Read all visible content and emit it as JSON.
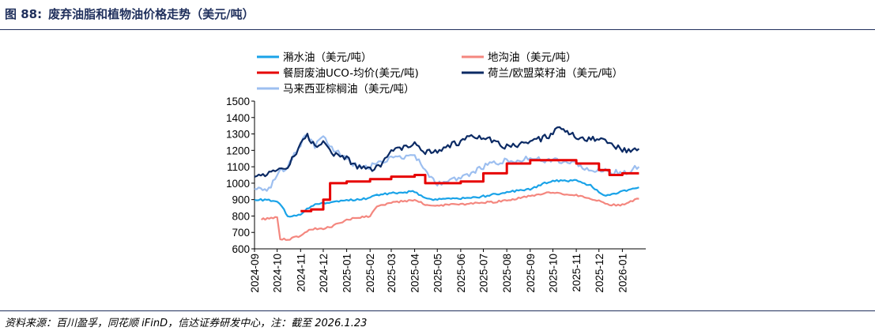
{
  "figure": {
    "number": "图 88:",
    "title": "废弃油脂和植物油价格走势（美元/吨）",
    "source": "资料来源：百川盈孚，同花顺 iFinD，信达证券研发中心，注：截至 2026.1.23"
  },
  "chart_data": {
    "type": "line",
    "title": "废弃油脂和植物油价格走势（美元/吨）",
    "xlabel": "",
    "ylabel": "",
    "ylim": [
      600,
      1500
    ],
    "yticks": [
      600,
      700,
      800,
      900,
      1000,
      1100,
      1200,
      1300,
      1400,
      1500
    ],
    "xlim": [
      "2024-09",
      "2026-01"
    ],
    "categories": [
      "2024-09",
      "2024-10",
      "2024-11",
      "2024-12",
      "2025-01",
      "2025-02",
      "2025-03",
      "2025-04",
      "2025-05",
      "2025-06",
      "2025-07",
      "2025-08",
      "2025-09",
      "2025-10",
      "2025-11",
      "2025-12",
      "2026-01"
    ],
    "grid": false,
    "legend_position": "top",
    "series": [
      {
        "name": "潲水油（美元/吨）",
        "color": "#1aa3e8",
        "x": [
          "2024-09",
          "2024-09-20",
          "2024-10",
          "2024-10-10",
          "2024-10-15",
          "2024-11",
          "2024-11-15",
          "2024-12",
          "2025-01",
          "2025-01-15",
          "2025-02",
          "2025-02-10",
          "2025-03",
          "2025-04",
          "2025-04-15",
          "2025-05",
          "2025-06",
          "2025-07",
          "2025-08",
          "2025-09",
          "2025-09-20",
          "2025-10",
          "2025-11",
          "2025-11-20",
          "2025-12",
          "2025-12-10",
          "2026-01",
          "2026-01-23"
        ],
        "values": [
          900,
          895,
          890,
          840,
          795,
          810,
          860,
          880,
          895,
          900,
          910,
          930,
          940,
          950,
          905,
          900,
          905,
          920,
          945,
          965,
          1000,
          1015,
          1015,
          985,
          950,
          925,
          950,
          975
        ]
      },
      {
        "name": "地沟油（美元/吨）",
        "color": "#f4877f",
        "x": [
          "2024-09-10",
          "2024-10",
          "2024-10-05",
          "2024-10-15",
          "2024-11",
          "2024-11-15",
          "2024-12",
          "2024-12-15",
          "2025-01",
          "2025-02",
          "2025-02-10",
          "2025-03",
          "2025-04",
          "2025-04-15",
          "2025-05",
          "2025-06",
          "2025-07",
          "2025-08",
          "2025-09",
          "2025-10",
          "2025-11",
          "2025-12",
          "2025-12-15",
          "2026-01",
          "2026-01-23"
        ],
        "values": [
          780,
          790,
          660,
          655,
          680,
          720,
          725,
          740,
          780,
          800,
          860,
          880,
          900,
          870,
          865,
          870,
          880,
          895,
          920,
          945,
          925,
          890,
          865,
          870,
          905
        ]
      },
      {
        "name": "餐厨废油UCO-均价(美元/吨)",
        "color": "#e60000",
        "x": [
          "2024-11",
          "2024-11-15",
          "2024-12",
          "2024-12-10",
          "2025-01",
          "2025-02",
          "2025-03",
          "2025-04",
          "2025-04-15",
          "2025-05",
          "2025-06",
          "2025-07",
          "2025-08",
          "2025-09",
          "2025-10",
          "2025-11",
          "2025-12",
          "2025-12-15",
          "2026-01",
          "2026-01-23"
        ],
        "values": [
          830,
          840,
          900,
          1000,
          1010,
          1025,
          1040,
          1050,
          1000,
          1000,
          1010,
          1060,
          1120,
          1140,
          1140,
          1120,
          1080,
          1050,
          1060,
          1060
        ]
      },
      {
        "name": "荷兰/欧盟菜籽油（美元/吨）",
        "color": "#0b2a64",
        "x": [
          "2024-09",
          "2024-09-15",
          "2024-10",
          "2024-10-15",
          "2024-11",
          "2024-11-10",
          "2024-11-20",
          "2024-12",
          "2024-12-15",
          "2025-01",
          "2025-01-15",
          "2025-02",
          "2025-02-15",
          "2025-03",
          "2025-03-15",
          "2025-04",
          "2025-04-15",
          "2025-05",
          "2025-05-15",
          "2025-06",
          "2025-06-15",
          "2025-07",
          "2025-07-15",
          "2025-08",
          "2025-08-15",
          "2025-09",
          "2025-09-15",
          "2025-10",
          "2025-10-10",
          "2025-10-20",
          "2025-11",
          "2025-11-15",
          "2025-12",
          "2025-12-15",
          "2026-01",
          "2026-01-23"
        ],
        "values": [
          1050,
          1040,
          1090,
          1100,
          1240,
          1290,
          1230,
          1250,
          1180,
          1150,
          1100,
          1080,
          1110,
          1200,
          1210,
          1240,
          1190,
          1200,
          1230,
          1250,
          1290,
          1270,
          1260,
          1220,
          1230,
          1260,
          1270,
          1300,
          1350,
          1310,
          1280,
          1270,
          1270,
          1250,
          1200,
          1210
        ]
      },
      {
        "name": "马来西亚棕榈油（美元/吨）",
        "color": "#9dbff0",
        "x": [
          "2024-09",
          "2024-09-20",
          "2024-10",
          "2024-10-15",
          "2024-11",
          "2024-11-10",
          "2024-11-20",
          "2024-12",
          "2024-12-15",
          "2025-01",
          "2025-01-15",
          "2025-02",
          "2025-02-15",
          "2025-03",
          "2025-03-15",
          "2025-04",
          "2025-04-15",
          "2025-05",
          "2025-05-15",
          "2025-06",
          "2025-06-15",
          "2025-07",
          "2025-07-15",
          "2025-08",
          "2025-08-15",
          "2025-09",
          "2025-09-15",
          "2025-10",
          "2025-10-15",
          "2025-11",
          "2025-11-15",
          "2025-12",
          "2025-12-15",
          "2026-01",
          "2026-01-23"
        ],
        "values": [
          980,
          960,
          1060,
          1100,
          1240,
          1300,
          1230,
          1280,
          1200,
          1150,
          1100,
          1100,
          1130,
          1150,
          1160,
          1170,
          1080,
          990,
          1010,
          1030,
          1060,
          1100,
          1120,
          1140,
          1140,
          1150,
          1140,
          1140,
          1130,
          1120,
          1090,
          1080,
          1070,
          1060,
          1100
        ]
      }
    ]
  }
}
